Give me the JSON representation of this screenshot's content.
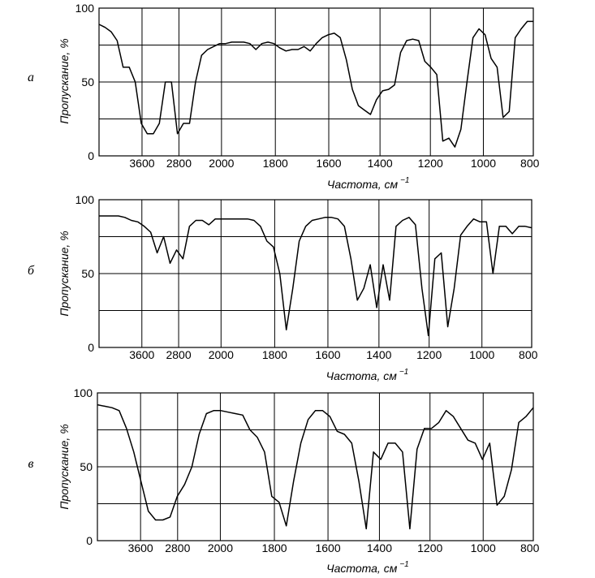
{
  "chart_data": [
    {
      "type": "line",
      "panel_label": "а",
      "xlabel": "Частота, см",
      "xlabel_sup": "−1",
      "ylabel": "Пропускание, %",
      "x_ticks": [
        "3600",
        "2800",
        "2000",
        "1800",
        "1600",
        "1400",
        "1200",
        "1000",
        "800"
      ],
      "y_ticks": [
        "100",
        "50",
        "0"
      ],
      "ylim": [
        0,
        100
      ],
      "grid": true,
      "series": [
        {
          "y": [
            89,
            87,
            84,
            78,
            60,
            60,
            50,
            22,
            15,
            15,
            22,
            50,
            50,
            15,
            22,
            22,
            50,
            68,
            72,
            74,
            76,
            76,
            77,
            77,
            77,
            76,
            72,
            76,
            77,
            76,
            73,
            71,
            72,
            72,
            74,
            71,
            76,
            80,
            82,
            83,
            80,
            65,
            45,
            34,
            31,
            28,
            38,
            44,
            45,
            48,
            70,
            78,
            79,
            78,
            64,
            60,
            55,
            10,
            12,
            6,
            18,
            50,
            80,
            86,
            82,
            66,
            60,
            26,
            30,
            80,
            86,
            91,
            91
          ]
        }
      ]
    },
    {
      "type": "line",
      "panel_label": "б",
      "xlabel": "Частота, см",
      "xlabel_sup": "−1",
      "ylabel": "Пропускание, %",
      "x_ticks": [
        "3600",
        "2800",
        "2000",
        "1800",
        "1600",
        "1400",
        "1200",
        "1000",
        "800"
      ],
      "y_ticks": [
        "100",
        "50",
        "0"
      ],
      "ylim": [
        0,
        100
      ],
      "grid": true,
      "series": [
        {
          "y": [
            89,
            89,
            89,
            89,
            88,
            86,
            85,
            82,
            78,
            64,
            75,
            57,
            66,
            60,
            82,
            86,
            86,
            83,
            87,
            87,
            87,
            87,
            87,
            87,
            86,
            82,
            72,
            68,
            50,
            12,
            40,
            72,
            82,
            86,
            87,
            88,
            88,
            87,
            82,
            60,
            32,
            40,
            56,
            27,
            56,
            32,
            82,
            86,
            88,
            83,
            40,
            8,
            60,
            64,
            14,
            40,
            76,
            82,
            87,
            85,
            85,
            50,
            82,
            82,
            77,
            82,
            82,
            81
          ]
        }
      ]
    },
    {
      "type": "line",
      "panel_label": "в",
      "xlabel": "Частота, см",
      "xlabel_sup": "−1",
      "ylabel": "Пропускание, %",
      "x_ticks": [
        "3600",
        "2800",
        "2000",
        "1800",
        "1600",
        "1400",
        "1200",
        "1000",
        "800"
      ],
      "y_ticks": [
        "100",
        "50",
        "0"
      ],
      "ylim": [
        0,
        100
      ],
      "grid": true,
      "series": [
        {
          "y": [
            92,
            91,
            90,
            88,
            76,
            60,
            40,
            20,
            14,
            14,
            16,
            30,
            38,
            50,
            72,
            86,
            88,
            88,
            87,
            86,
            85,
            75,
            70,
            60,
            30,
            26,
            10,
            40,
            66,
            82,
            88,
            88,
            84,
            74,
            72,
            66,
            40,
            8,
            60,
            55,
            66,
            66,
            60,
            8,
            62,
            76,
            76,
            80,
            88,
            84,
            76,
            68,
            66,
            55,
            66,
            24,
            30,
            48,
            80,
            84,
            90
          ]
        }
      ]
    }
  ]
}
